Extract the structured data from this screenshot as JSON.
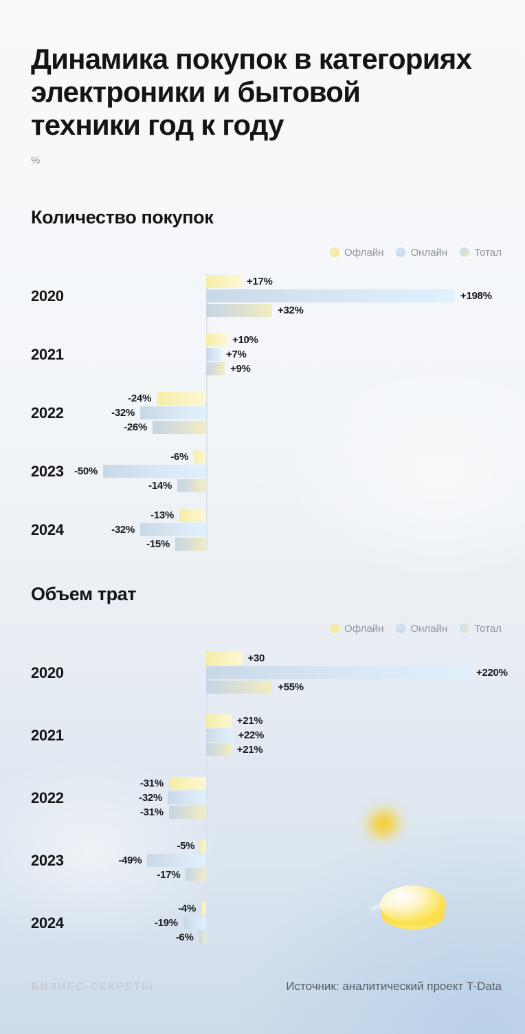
{
  "page": {
    "title": "Динамика покупок в категориях\nэлектроники и бытовой\nтехники год к году",
    "unit_label": "%",
    "footer": {
      "brand": "БИЗНЕС-СЕКРЕТЫ",
      "source": "Источник: аналитический проект T-Data"
    }
  },
  "colors": {
    "offline": "#f2e8a2",
    "online": "#c5dbef",
    "total_gradient": [
      "#c5d6e4",
      "#f2edbf"
    ],
    "axis": "#d9e4f0",
    "background_top": "#f8f9fb",
    "background_bottom": "#cfdceb",
    "coin": "#fbe251",
    "text": "#131415",
    "legend_text": "#8f959c"
  },
  "chart_data": [
    {
      "type": "bar",
      "orientation": "horizontal",
      "title": "Количество покупок",
      "unit": "%",
      "baseline": 0,
      "grid": false,
      "legend_position": "top-right",
      "categories": [
        "2020",
        "2021",
        "2022",
        "2023",
        "2024"
      ],
      "series": [
        {
          "name": "Офлайн",
          "color": "#f2e8a2",
          "values": [
            17,
            10,
            -24,
            -6,
            -13
          ],
          "labels": [
            "+17%",
            "+10%",
            "-24%",
            "-6%",
            "-13%"
          ]
        },
        {
          "name": "Онлайн",
          "color": "#c5dbef",
          "values": [
            198,
            7,
            -32,
            -50,
            -32
          ],
          "labels": [
            "+198%",
            "+7%",
            "-32%",
            "-50%",
            "-32%"
          ]
        },
        {
          "name": "Тотал",
          "color": "#d9ded6",
          "values": [
            32,
            9,
            -26,
            -14,
            -15
          ],
          "labels": [
            "+32%",
            "+9%",
            "-26%",
            "-14%",
            "-15%"
          ]
        }
      ]
    },
    {
      "type": "bar",
      "orientation": "horizontal",
      "title": "Объем трат",
      "unit": "%",
      "baseline": 0,
      "grid": false,
      "legend_position": "top-right",
      "categories": [
        "2020",
        "2021",
        "2022",
        "2023",
        "2024"
      ],
      "series": [
        {
          "name": "Офлайн",
          "color": "#f2e8a2",
          "values": [
            30,
            21,
            -31,
            -5,
            -4
          ],
          "labels": [
            "+30",
            "+21%",
            "-31%",
            "-5%",
            "-4%"
          ]
        },
        {
          "name": "Онлайн",
          "color": "#c5dbef",
          "values": [
            220,
            22,
            -32,
            -49,
            -19
          ],
          "labels": [
            "+220%",
            "+22%",
            "-32%",
            "-49%",
            "-19%"
          ]
        },
        {
          "name": "Тотал",
          "color": "#d9ded6",
          "values": [
            55,
            21,
            -31,
            -17,
            -6
          ],
          "labels": [
            "+55%",
            "+21%",
            "-31%",
            "-17%",
            "-6%"
          ]
        }
      ]
    }
  ]
}
